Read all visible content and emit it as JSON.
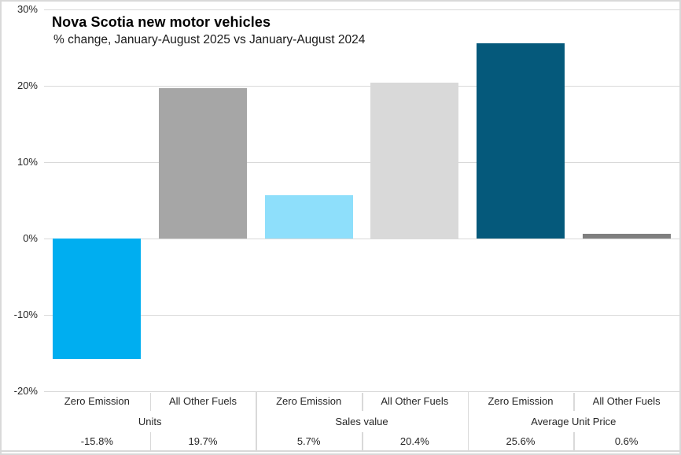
{
  "chart_data": {
    "type": "bar",
    "title": "Nova Scotia new motor vehicles",
    "subtitle": "% change, January-August 2025 vs January-August 2024",
    "y_axis": {
      "min": -20,
      "max": 30,
      "step": 10,
      "suffix": "%",
      "tick_labels": [
        "30%",
        "20%",
        "10%",
        "0%",
        "-10%",
        "-20%"
      ]
    },
    "grid": true,
    "legend": "none",
    "groups": [
      {
        "label": "Units",
        "bars": [
          {
            "category": "Zero Emission",
            "value": -15.8,
            "value_label": "-15.8%",
            "color": "#00AEF0"
          },
          {
            "category": "All Other Fuels",
            "value": 19.7,
            "value_label": "19.7%",
            "color": "#A6A6A6"
          }
        ]
      },
      {
        "label": "Sales value",
        "bars": [
          {
            "category": "Zero Emission",
            "value": 5.7,
            "value_label": "5.7%",
            "color": "#8EDFFB"
          },
          {
            "category": "All Other Fuels",
            "value": 20.4,
            "value_label": "20.4%",
            "color": "#D9D9D9"
          }
        ]
      },
      {
        "label": "Average Unit Price",
        "bars": [
          {
            "category": "Zero Emission",
            "value": 25.6,
            "value_label": "25.6%",
            "color": "#05597B"
          },
          {
            "category": "All Other Fuels",
            "value": 0.6,
            "value_label": "0.6%",
            "color": "#7F7F7F"
          }
        ]
      }
    ],
    "colors": {
      "gridline": "#D9D9D9",
      "axis_text": "#262626",
      "frame_border": "#D9D9D9"
    }
  }
}
